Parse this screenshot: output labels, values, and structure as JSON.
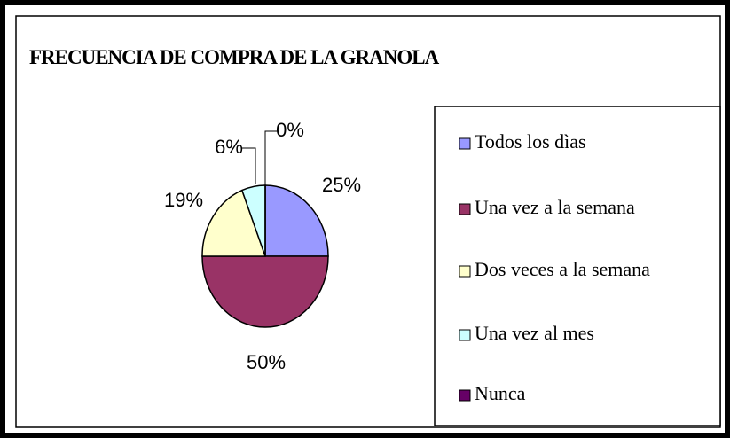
{
  "chart_data": {
    "type": "pie",
    "title": "FRECUENCIA DE COMPRA DE LA GRANOLA",
    "categories": [
      "Todos los dìas",
      "Una vez a la semana",
      "Dos veces a la semana",
      "Una vez al mes",
      "Nunca"
    ],
    "values": [
      25,
      50,
      19,
      6,
      0
    ],
    "value_labels": [
      "25%",
      "50%",
      "19%",
      "6%",
      "0%"
    ],
    "colors": [
      "#9999ff",
      "#993366",
      "#ffffcc",
      "#ccffff",
      "#660066"
    ],
    "legend": "right"
  }
}
